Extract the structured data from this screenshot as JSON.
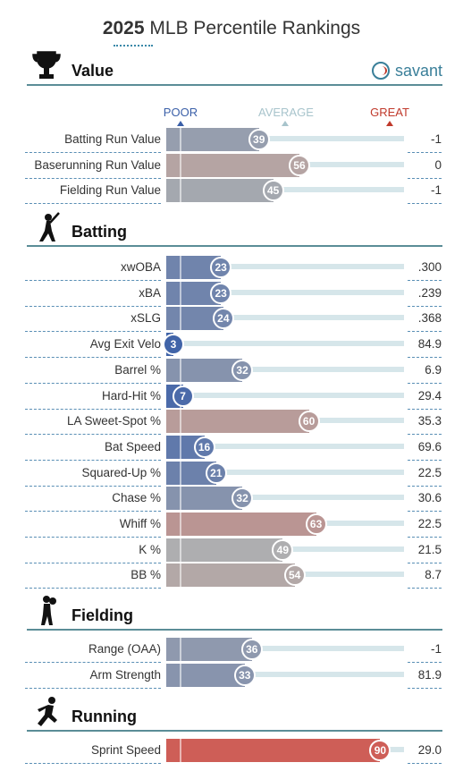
{
  "header": {
    "year": "2025",
    "title": "MLB Percentile Rankings"
  },
  "logo": {
    "text": "savant",
    "icon": "baseball-icon"
  },
  "scale": {
    "poor": "POOR",
    "average": "AVERAGE",
    "great": "GREAT"
  },
  "colors": {
    "poor": "#3a5fa8",
    "average": "#b0b0b0",
    "great": "#d64a41",
    "track": "#d6e6ea",
    "rule": "#5b8d97"
  },
  "chart_data": {
    "type": "bar",
    "title": "2025 MLB Percentile Rankings",
    "xlim": [
      0,
      100
    ],
    "sections": [
      {
        "name": "Value",
        "icon": "trophy-icon",
        "metrics": [
          {
            "label": "Batting Run Value",
            "percentile": 39,
            "value": "-1"
          },
          {
            "label": "Baserunning Run Value",
            "percentile": 56,
            "value": "0"
          },
          {
            "label": "Fielding Run Value",
            "percentile": 45,
            "value": "-1"
          }
        ]
      },
      {
        "name": "Batting",
        "icon": "batter-icon",
        "metrics": [
          {
            "label": "xwOBA",
            "percentile": 23,
            "value": ".300"
          },
          {
            "label": "xBA",
            "percentile": 23,
            "value": ".239"
          },
          {
            "label": "xSLG",
            "percentile": 24,
            "value": ".368"
          },
          {
            "label": "Avg Exit Velo",
            "percentile": 3,
            "value": "84.9"
          },
          {
            "label": "Barrel %",
            "percentile": 32,
            "value": "6.9"
          },
          {
            "label": "Hard-Hit %",
            "percentile": 7,
            "value": "29.4"
          },
          {
            "label": "LA Sweet-Spot %",
            "percentile": 60,
            "value": "35.3"
          },
          {
            "label": "Bat Speed",
            "percentile": 16,
            "value": "69.6"
          },
          {
            "label": "Squared-Up %",
            "percentile": 21,
            "value": "22.5"
          },
          {
            "label": "Chase %",
            "percentile": 32,
            "value": "30.6"
          },
          {
            "label": "Whiff %",
            "percentile": 63,
            "value": "22.5"
          },
          {
            "label": "K %",
            "percentile": 49,
            "value": "21.5"
          },
          {
            "label": "BB %",
            "percentile": 54,
            "value": "8.7"
          }
        ]
      },
      {
        "name": "Fielding",
        "icon": "fielder-icon",
        "metrics": [
          {
            "label": "Range (OAA)",
            "percentile": 36,
            "value": "-1"
          },
          {
            "label": "Arm Strength",
            "percentile": 33,
            "value": "81.9"
          }
        ]
      },
      {
        "name": "Running",
        "icon": "runner-icon",
        "metrics": [
          {
            "label": "Sprint Speed",
            "percentile": 90,
            "value": "29.0"
          }
        ]
      }
    ]
  }
}
